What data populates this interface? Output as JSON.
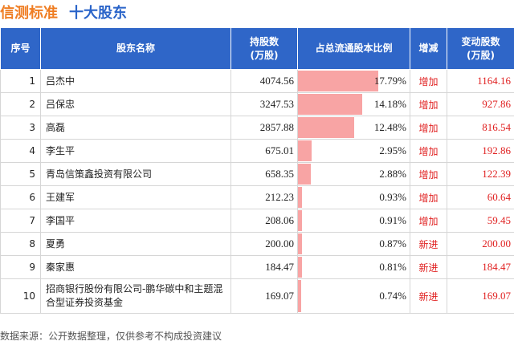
{
  "title": {
    "company": "信测标准",
    "section": "十大股东"
  },
  "headers": {
    "index": "序号",
    "name": "股东名称",
    "shares_line1": "持股数",
    "shares_line2": "(万股)",
    "ratio": "占总流通股本比例",
    "direction": "增减",
    "change_line1": "变动股数",
    "change_line2": "(万股)"
  },
  "rows": [
    {
      "index": "1",
      "name": "吕杰中",
      "shares": "4074.56",
      "ratio": "17.79%",
      "ratio_value": 17.79,
      "direction": "增加",
      "change": "1164.16"
    },
    {
      "index": "2",
      "name": "吕保忠",
      "shares": "3247.53",
      "ratio": "14.18%",
      "ratio_value": 14.18,
      "direction": "增加",
      "change": "927.86"
    },
    {
      "index": "3",
      "name": "高磊",
      "shares": "2857.88",
      "ratio": "12.48%",
      "ratio_value": 12.48,
      "direction": "增加",
      "change": "816.54"
    },
    {
      "index": "4",
      "name": "李生平",
      "shares": "675.01",
      "ratio": "2.95%",
      "ratio_value": 2.95,
      "direction": "增加",
      "change": "192.86"
    },
    {
      "index": "5",
      "name": "青岛信策鑫投资有限公司",
      "shares": "658.35",
      "ratio": "2.88%",
      "ratio_value": 2.88,
      "direction": "增加",
      "change": "122.39"
    },
    {
      "index": "6",
      "name": "王建军",
      "shares": "212.23",
      "ratio": "0.93%",
      "ratio_value": 0.93,
      "direction": "增加",
      "change": "60.64"
    },
    {
      "index": "7",
      "name": "李国平",
      "shares": "208.06",
      "ratio": "0.91%",
      "ratio_value": 0.91,
      "direction": "增加",
      "change": "59.45"
    },
    {
      "index": "8",
      "name": "夏勇",
      "shares": "200.00",
      "ratio": "0.87%",
      "ratio_value": 0.87,
      "direction": "新进",
      "change": "200.00"
    },
    {
      "index": "9",
      "name": "秦家惠",
      "shares": "184.47",
      "ratio": "0.81%",
      "ratio_value": 0.81,
      "direction": "新进",
      "change": "184.47"
    },
    {
      "index": "10",
      "name": "招商银行股份有限公司-鹏华碳中和主题混合型证券投资基金",
      "shares": "169.07",
      "ratio": "0.74%",
      "ratio_value": 0.74,
      "direction": "新进",
      "change": "169.07"
    }
  ],
  "footer": "数据来源：公开数据整理，仅供参考不构成投资建议",
  "colors": {
    "header_bg": "#2f66c8",
    "bar": "#f8a4a4",
    "accent_red": "#e02020",
    "title_orange": "#ef7d22",
    "title_blue": "#2a64c9"
  }
}
